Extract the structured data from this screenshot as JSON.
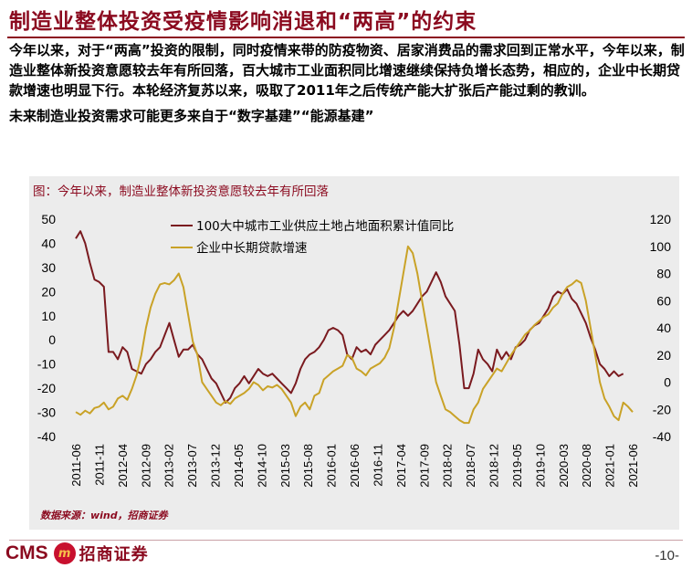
{
  "page": {
    "title": "制造业整体投资受疫情影响消退和“两高”的约束",
    "paragraphs": [
      "今年以来，对于“两高”投资的限制，同时疫情来带的防疫物资、居家消费品的需求回到正常水平，今年以来，制造业整体新投资意愿较去年有所回落，百大城市工业面积同比增速继续保持负增长态势，相应的，企业中长期贷款增速也明显下行。本轮经济复苏以来，吸取了2011年之后传统产能大扩张后产能过剩的教训。",
      "未来制造业投资需求可能更多来自于“数字基建”“能源基建”"
    ],
    "source": "数据来源：wind，招商证券",
    "page_number": "-10-",
    "logo_text": "CMS",
    "logo_mark": "m",
    "logo_name": "招商证券"
  },
  "chart_data": {
    "type": "line",
    "title": "图：今年以来，制造业整体新投资意愿较去年有所回落",
    "x_ticks": [
      "2011-06",
      "2011-11",
      "2012-04",
      "2012-09",
      "2013-02",
      "2013-07",
      "2013-12",
      "2014-05",
      "2014-10",
      "2015-03",
      "2015-08",
      "2016-01",
      "2016-06",
      "2016-11",
      "2017-04",
      "2017-09",
      "2018-02",
      "2018-07",
      "2018-12",
      "2019-05",
      "2019-10",
      "2020-03",
      "2020-08",
      "2021-01",
      "2021-06"
    ],
    "y_left": {
      "min": -40,
      "max": 50,
      "ticks": [
        50,
        40,
        30,
        20,
        10,
        0,
        -10,
        -20,
        -30,
        -40
      ]
    },
    "y_right": {
      "min": -40,
      "max": 120,
      "ticks": [
        120,
        100,
        80,
        60,
        40,
        20,
        0,
        -20,
        -40
      ]
    },
    "colors": {
      "series1": "#7a1a1f",
      "series2": "#c9a227"
    },
    "series": [
      {
        "name": "100大中城市工业供应土地占地面积累计值同比",
        "axis": "left",
        "values": [
          [
            0,
            42
          ],
          [
            1,
            45
          ],
          [
            2,
            40
          ],
          [
            3,
            32
          ],
          [
            4,
            25
          ],
          [
            5,
            24
          ],
          [
            6,
            22
          ],
          [
            7,
            -5
          ],
          [
            8,
            -5
          ],
          [
            9,
            -8
          ],
          [
            10,
            -3
          ],
          [
            11,
            -5
          ],
          [
            12,
            -12
          ],
          [
            13,
            -13
          ],
          [
            14,
            -14
          ],
          [
            15,
            -10
          ],
          [
            16,
            -8
          ],
          [
            17,
            -5
          ],
          [
            18,
            -3
          ],
          [
            19,
            2
          ],
          [
            20,
            7
          ],
          [
            21,
            0
          ],
          [
            22,
            -7
          ],
          [
            23,
            -4
          ],
          [
            24,
            -4
          ],
          [
            25,
            -2
          ],
          [
            26,
            -6
          ],
          [
            27,
            -8
          ],
          [
            28,
            -12
          ],
          [
            29,
            -16
          ],
          [
            30,
            -18
          ],
          [
            31,
            -22
          ],
          [
            32,
            -26
          ],
          [
            33,
            -24
          ],
          [
            34,
            -20
          ],
          [
            35,
            -18
          ],
          [
            36,
            -15
          ],
          [
            37,
            -18
          ],
          [
            38,
            -15
          ],
          [
            39,
            -12
          ],
          [
            40,
            -14
          ],
          [
            41,
            -15
          ],
          [
            42,
            -14
          ],
          [
            43,
            -16
          ],
          [
            44,
            -18
          ],
          [
            45,
            -20
          ],
          [
            46,
            -22
          ],
          [
            47,
            -18
          ],
          [
            48,
            -12
          ],
          [
            49,
            -8
          ],
          [
            50,
            -6
          ],
          [
            51,
            -5
          ],
          [
            52,
            -3
          ],
          [
            53,
            0
          ],
          [
            54,
            4
          ],
          [
            55,
            5
          ],
          [
            56,
            4
          ],
          [
            57,
            2
          ],
          [
            58,
            -6
          ],
          [
            59,
            -8
          ],
          [
            60,
            -3
          ],
          [
            61,
            -5
          ],
          [
            62,
            -4
          ],
          [
            63,
            -6
          ],
          [
            64,
            -2
          ],
          [
            65,
            0
          ],
          [
            66,
            2
          ],
          [
            67,
            4
          ],
          [
            68,
            7
          ],
          [
            69,
            10
          ],
          [
            70,
            12
          ],
          [
            71,
            10
          ],
          [
            72,
            12
          ],
          [
            73,
            15
          ],
          [
            74,
            18
          ],
          [
            75,
            20
          ],
          [
            76,
            24
          ],
          [
            77,
            28
          ],
          [
            78,
            24
          ],
          [
            79,
            18
          ],
          [
            80,
            15
          ],
          [
            81,
            12
          ],
          [
            82,
            -2
          ],
          [
            83,
            -20
          ],
          [
            84,
            -20
          ],
          [
            85,
            -14
          ],
          [
            86,
            -4
          ],
          [
            87,
            -8
          ],
          [
            88,
            -10
          ],
          [
            89,
            -13
          ],
          [
            90,
            -4
          ],
          [
            91,
            -8
          ],
          [
            92,
            -5
          ],
          [
            93,
            -8
          ],
          [
            94,
            -3
          ],
          [
            95,
            -2
          ],
          [
            96,
            0
          ],
          [
            97,
            4
          ],
          [
            98,
            6
          ],
          [
            99,
            7
          ],
          [
            100,
            10
          ],
          [
            101,
            13
          ],
          [
            102,
            18
          ],
          [
            103,
            20
          ],
          [
            104,
            19
          ],
          [
            105,
            21
          ],
          [
            106,
            17
          ],
          [
            107,
            15
          ],
          [
            108,
            11
          ],
          [
            109,
            7
          ],
          [
            110,
            1
          ],
          [
            111,
            -4
          ],
          [
            112,
            -10
          ],
          [
            113,
            -12
          ],
          [
            114,
            -15
          ],
          [
            115,
            -13
          ],
          [
            116,
            -15
          ],
          [
            117,
            -14
          ]
        ]
      },
      {
        "name": "企业中长期贷款增速",
        "axis": "right",
        "values": [
          [
            0,
            -22
          ],
          [
            1,
            -24
          ],
          [
            2,
            -21
          ],
          [
            3,
            -23
          ],
          [
            4,
            -19
          ],
          [
            5,
            -18
          ],
          [
            6,
            -15
          ],
          [
            7,
            -20
          ],
          [
            8,
            -18
          ],
          [
            9,
            -12
          ],
          [
            10,
            -10
          ],
          [
            11,
            -13
          ],
          [
            12,
            -5
          ],
          [
            13,
            5
          ],
          [
            14,
            20
          ],
          [
            15,
            40
          ],
          [
            16,
            55
          ],
          [
            17,
            65
          ],
          [
            18,
            72
          ],
          [
            19,
            73
          ],
          [
            20,
            72
          ],
          [
            21,
            75
          ],
          [
            22,
            80
          ],
          [
            23,
            70
          ],
          [
            24,
            50
          ],
          [
            25,
            30
          ],
          [
            26,
            20
          ],
          [
            27,
            0
          ],
          [
            28,
            -5
          ],
          [
            29,
            -10
          ],
          [
            30,
            -15
          ],
          [
            31,
            -17
          ],
          [
            32,
            -14
          ],
          [
            33,
            -16
          ],
          [
            34,
            -12
          ],
          [
            35,
            -10
          ],
          [
            36,
            -8
          ],
          [
            37,
            -5
          ],
          [
            38,
            0
          ],
          [
            39,
            -2
          ],
          [
            40,
            -6
          ],
          [
            41,
            -3
          ],
          [
            42,
            -4
          ],
          [
            43,
            -2
          ],
          [
            44,
            -5
          ],
          [
            45,
            -10
          ],
          [
            46,
            -15
          ],
          [
            47,
            -25
          ],
          [
            48,
            -18
          ],
          [
            49,
            -15
          ],
          [
            50,
            -20
          ],
          [
            51,
            -10
          ],
          [
            52,
            -8
          ],
          [
            53,
            2
          ],
          [
            54,
            5
          ],
          [
            55,
            8
          ],
          [
            56,
            10
          ],
          [
            57,
            12
          ],
          [
            58,
            20
          ],
          [
            59,
            18
          ],
          [
            60,
            10
          ],
          [
            61,
            8
          ],
          [
            62,
            5
          ],
          [
            63,
            10
          ],
          [
            64,
            12
          ],
          [
            65,
            14
          ],
          [
            66,
            18
          ],
          [
            67,
            25
          ],
          [
            68,
            40
          ],
          [
            69,
            60
          ],
          [
            70,
            80
          ],
          [
            71,
            100
          ],
          [
            72,
            95
          ],
          [
            73,
            80
          ],
          [
            74,
            60
          ],
          [
            75,
            40
          ],
          [
            76,
            20
          ],
          [
            77,
            0
          ],
          [
            78,
            -10
          ],
          [
            79,
            -20
          ],
          [
            80,
            -22
          ],
          [
            81,
            -25
          ],
          [
            82,
            -28
          ],
          [
            83,
            -30
          ],
          [
            84,
            -30
          ],
          [
            85,
            -20
          ],
          [
            86,
            -15
          ],
          [
            87,
            -5
          ],
          [
            88,
            0
          ],
          [
            89,
            5
          ],
          [
            90,
            10
          ],
          [
            91,
            8
          ],
          [
            92,
            14
          ],
          [
            93,
            20
          ],
          [
            94,
            25
          ],
          [
            95,
            30
          ],
          [
            96,
            35
          ],
          [
            97,
            38
          ],
          [
            98,
            42
          ],
          [
            99,
            45
          ],
          [
            100,
            48
          ],
          [
            101,
            50
          ],
          [
            102,
            55
          ],
          [
            103,
            58
          ],
          [
            104,
            65
          ],
          [
            105,
            70
          ],
          [
            106,
            72
          ],
          [
            107,
            75
          ],
          [
            108,
            73
          ],
          [
            109,
            60
          ],
          [
            110,
            40
          ],
          [
            111,
            20
          ],
          [
            112,
            0
          ],
          [
            113,
            -12
          ],
          [
            114,
            -18
          ],
          [
            115,
            -25
          ],
          [
            116,
            -28
          ],
          [
            117,
            -15
          ],
          [
            118,
            -18
          ],
          [
            119,
            -22
          ]
        ]
      }
    ]
  }
}
